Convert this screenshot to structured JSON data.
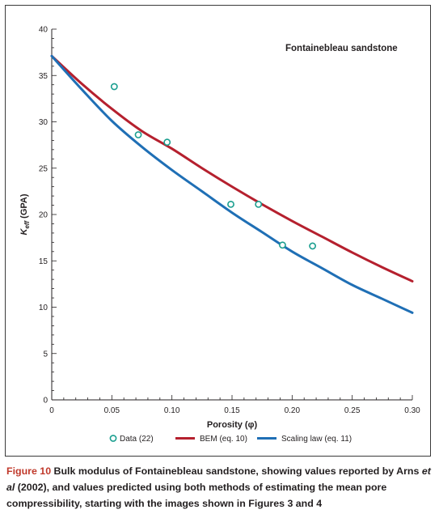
{
  "chart_data": {
    "type": "scatter",
    "annotation": "Fontainebleau sandstone",
    "xlabel": "Porosity (φ)",
    "ylabel_main": "K",
    "ylabel_sub": "eff",
    "ylabel_unit": " (GPA)",
    "xlim": [
      0,
      0.3
    ],
    "ylim": [
      0,
      40
    ],
    "x_ticks": [
      0,
      0.05,
      0.1,
      0.15,
      0.2,
      0.25,
      0.3
    ],
    "x_tick_labels": [
      "0",
      "0.05",
      "0.10",
      "0.15",
      "0.20",
      "0.25",
      "0.30"
    ],
    "y_ticks": [
      0,
      5,
      10,
      15,
      20,
      25,
      30,
      35,
      40
    ],
    "y_tick_labels": [
      "0",
      "5",
      "10",
      "15",
      "20",
      "25",
      "30",
      "35",
      "40"
    ],
    "grid": false,
    "legend_position": "bottom",
    "series": [
      {
        "name": "Data (22)",
        "kind": "scatter",
        "color": "#1a9e8f",
        "x": [
          0.052,
          0.072,
          0.096,
          0.149,
          0.172,
          0.192,
          0.217
        ],
        "y": [
          33.8,
          28.6,
          27.8,
          21.1,
          21.1,
          16.7,
          16.6
        ]
      },
      {
        "name": "BEM (eq. 10)",
        "kind": "line",
        "color": "#b5202e",
        "x": [
          0,
          0.025,
          0.05,
          0.075,
          0.1,
          0.125,
          0.15,
          0.175,
          0.2,
          0.225,
          0.25,
          0.275,
          0.3
        ],
        "y": [
          37.1,
          34.1,
          31.4,
          29.0,
          27.1,
          25.0,
          23.0,
          21.1,
          19.3,
          17.6,
          15.9,
          14.3,
          12.8
        ]
      },
      {
        "name": "Scaling law (eq. 11)",
        "kind": "line",
        "color": "#1f6fb5",
        "x": [
          0,
          0.025,
          0.05,
          0.075,
          0.1,
          0.125,
          0.15,
          0.175,
          0.2,
          0.225,
          0.25,
          0.275,
          0.3
        ],
        "y": [
          37.1,
          33.5,
          30.1,
          27.3,
          24.8,
          22.5,
          20.2,
          18.1,
          16.0,
          14.2,
          12.4,
          10.9,
          9.4
        ]
      }
    ]
  },
  "caption": {
    "figure_label": "Figure 10",
    "text_1": " Bulk modulus of Fontainebleau sandstone, showing values reported by Arns ",
    "text_italic": "et al",
    "text_2": " (2002), and values predicted using both methods of estimating the mean pore compressibility, starting with the images shown in Figures 3 and 4"
  }
}
